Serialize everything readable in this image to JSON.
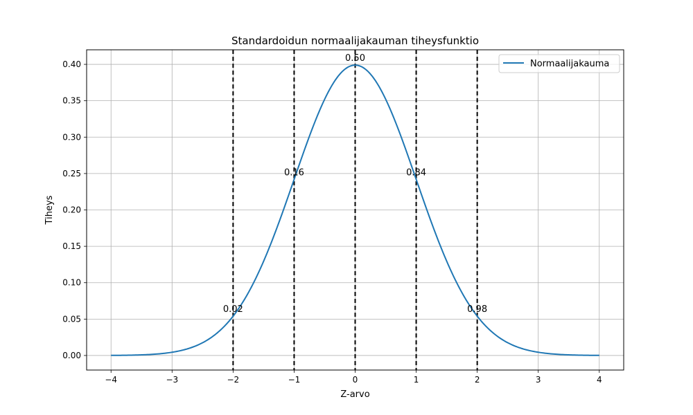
{
  "chart_data": {
    "type": "line",
    "title": "Standardoidun normaalijakauman tiheysfunktio",
    "xlabel": "Z-arvo",
    "ylabel": "Tiheys",
    "xlim": [
      -4.4,
      4.4
    ],
    "ylim": [
      -0.02,
      0.42
    ],
    "x_ticks": [
      -4,
      -3,
      -2,
      -1,
      0,
      1,
      2,
      3,
      4
    ],
    "x_tick_labels": [
      "−4",
      "−3",
      "−2",
      "−1",
      "0",
      "1",
      "2",
      "3",
      "4"
    ],
    "y_ticks": [
      0.0,
      0.05,
      0.1,
      0.15,
      0.2,
      0.25,
      0.3,
      0.35,
      0.4
    ],
    "y_tick_labels": [
      "0.00",
      "0.05",
      "0.10",
      "0.15",
      "0.20",
      "0.25",
      "0.30",
      "0.35",
      "0.40"
    ],
    "grid": true,
    "legend_position": "top-right",
    "series": [
      {
        "name": "Normaalijakauma",
        "color": "#1f77b4",
        "x": [
          -4.0,
          -3.75,
          -3.5,
          -3.25,
          -3.0,
          -2.75,
          -2.5,
          -2.25,
          -2.0,
          -1.75,
          -1.5,
          -1.25,
          -1.0,
          -0.75,
          -0.5,
          -0.25,
          0.0,
          0.25,
          0.5,
          0.75,
          1.0,
          1.25,
          1.5,
          1.75,
          2.0,
          2.25,
          2.5,
          2.75,
          3.0,
          3.25,
          3.5,
          3.75,
          4.0
        ],
        "y": [
          0.0001,
          0.0004,
          0.0009,
          0.002,
          0.0044,
          0.0091,
          0.0175,
          0.0317,
          0.054,
          0.0863,
          0.1295,
          0.1826,
          0.242,
          0.3011,
          0.3521,
          0.3867,
          0.3989,
          0.3867,
          0.3521,
          0.3011,
          0.242,
          0.1826,
          0.1295,
          0.0863,
          0.054,
          0.0317,
          0.0175,
          0.0091,
          0.0044,
          0.002,
          0.0009,
          0.0004,
          0.0001
        ]
      }
    ],
    "vlines": [
      {
        "x": -2,
        "style": "dashed",
        "color": "#000000"
      },
      {
        "x": -1,
        "style": "dashed",
        "color": "#000000"
      },
      {
        "x": 0,
        "style": "dashed",
        "color": "#000000"
      },
      {
        "x": 1,
        "style": "dashed",
        "color": "#000000"
      },
      {
        "x": 2,
        "style": "dashed",
        "color": "#000000"
      }
    ],
    "annotations": [
      {
        "x": -2,
        "y": 0.054,
        "text": "0.02"
      },
      {
        "x": -1,
        "y": 0.242,
        "text": "0.16"
      },
      {
        "x": 0,
        "y": 0.3989,
        "text": "0.50"
      },
      {
        "x": 1,
        "y": 0.242,
        "text": "0.84"
      },
      {
        "x": 2,
        "y": 0.054,
        "text": "0.98"
      }
    ]
  }
}
